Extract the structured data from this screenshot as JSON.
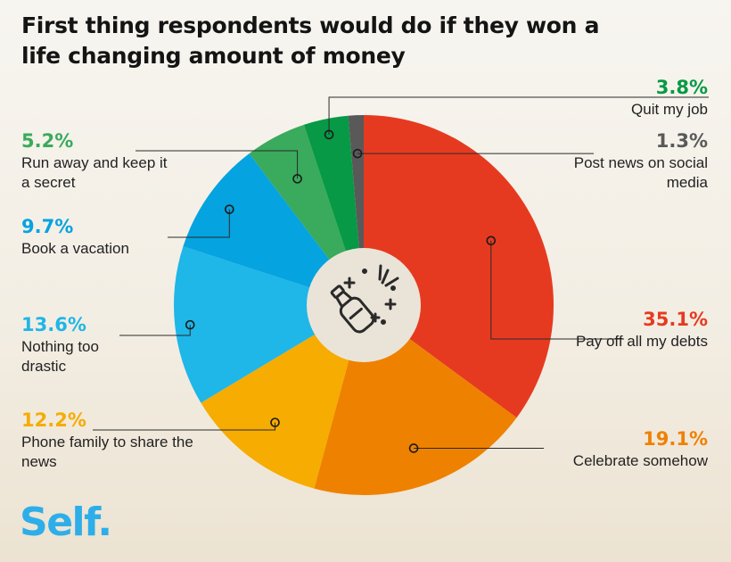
{
  "title": "First thing respondents would do if they won a life changing amount of money",
  "logo": "Self.",
  "chart_data": {
    "type": "pie",
    "title": "First thing respondents would do if they won a life changing amount of money",
    "slices": [
      {
        "label": "Pay off all my debts",
        "value": 35.1,
        "value_label": "35.1%",
        "color": "#e63a20"
      },
      {
        "label": "Celebrate somehow",
        "value": 19.1,
        "value_label": "19.1%",
        "color": "#ef8100"
      },
      {
        "label": "Phone family to share the news",
        "value": 12.2,
        "value_label": "12.2%",
        "color": "#f6ac00"
      },
      {
        "label": "Nothing too drastic",
        "value": 13.6,
        "value_label": "13.6%",
        "color": "#1fb6e8"
      },
      {
        "label": "Book a vacation",
        "value": 9.7,
        "value_label": "9.7%",
        "color": "#05a3e0"
      },
      {
        "label": "Run away and keep it a secret",
        "value": 5.2,
        "value_label": "5.2%",
        "color": "#3aaa5c"
      },
      {
        "label": "Quit my job",
        "value": 3.8,
        "value_label": "3.8%",
        "color": "#079945"
      },
      {
        "label": "Post news on social media",
        "value": 1.3,
        "value_label": "1.3%",
        "color": "#595959"
      }
    ]
  }
}
